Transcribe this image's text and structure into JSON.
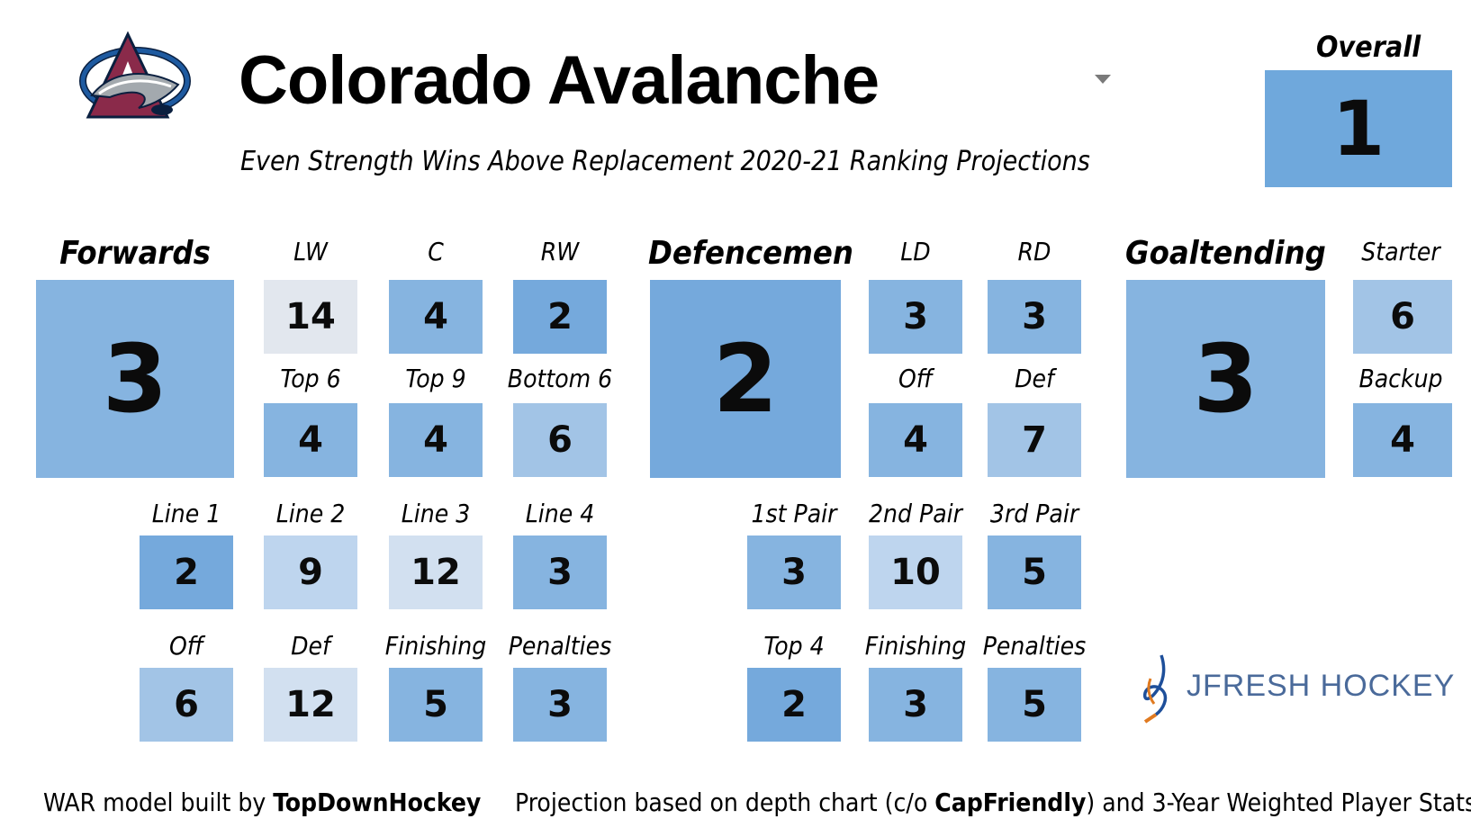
{
  "header": {
    "team_name": "Colorado Avalanche",
    "subtitle": "Even Strength Wins Above Replacement 2020-21 Ranking Projections",
    "overall_label": "Overall",
    "overall_rank": "1"
  },
  "forwards": {
    "heading": "Forwards",
    "rank": "3",
    "cells": [
      {
        "label": "LW",
        "value": "14"
      },
      {
        "label": "C",
        "value": "4"
      },
      {
        "label": "RW",
        "value": "2"
      },
      {
        "label": "Top 6",
        "value": "4"
      },
      {
        "label": "Top 9",
        "value": "4"
      },
      {
        "label": "Bottom 6",
        "value": "6"
      },
      {
        "label": "Line 1",
        "value": "2"
      },
      {
        "label": "Line 2",
        "value": "9"
      },
      {
        "label": "Line 3",
        "value": "12"
      },
      {
        "label": "Line 4",
        "value": "3"
      },
      {
        "label": "Off",
        "value": "6"
      },
      {
        "label": "Def",
        "value": "12"
      },
      {
        "label": "Finishing",
        "value": "5"
      },
      {
        "label": "Penalties",
        "value": "3"
      }
    ]
  },
  "defencemen": {
    "heading": "Defencemen",
    "rank": "2",
    "cells": [
      {
        "label": "LD",
        "value": "3"
      },
      {
        "label": "RD",
        "value": "3"
      },
      {
        "label": "Off",
        "value": "4"
      },
      {
        "label": "Def",
        "value": "7"
      },
      {
        "label": "1st Pair",
        "value": "3"
      },
      {
        "label": "2nd Pair",
        "value": "10"
      },
      {
        "label": "3rd Pair",
        "value": "5"
      },
      {
        "label": "Top 4",
        "value": "2"
      },
      {
        "label": "Finishing",
        "value": "3"
      },
      {
        "label": "Penalties",
        "value": "5"
      }
    ]
  },
  "goaltending": {
    "heading": "Goaltending",
    "rank": "3",
    "cells": [
      {
        "label": "Starter",
        "value": "6"
      },
      {
        "label": "Backup",
        "value": "4"
      }
    ]
  },
  "footer": {
    "left_prefix": "WAR model built by ",
    "left_bold": "TopDownHockey",
    "right_prefix": "Projection based on depth chart (c/o ",
    "right_bold": "CapFriendly",
    "right_suffix": ") and 3-Year Weighted Player Stats"
  },
  "brand": {
    "name": "JFRESH HOCKEY",
    "logo_icon": "jfresh-hockey-logo-icon"
  },
  "team_logo": {
    "icon": "colorado-avalanche-logo-icon",
    "colors": {
      "burgundy": "#8a2a4a",
      "blue": "#1e5aa0",
      "silver": "#a3a9ae",
      "navy": "#0a1f3f"
    }
  },
  "colors": {
    "rank_1": "#6fa8dc",
    "rank_2": "#75a9dc",
    "rank_3_to_5": "#86b4e0",
    "rank_6_to_7": "#a2c4e6",
    "rank_9_to_10": "#bed5ee",
    "rank_12": "#d2e0f0",
    "rank_14": "#e2e7ee"
  }
}
